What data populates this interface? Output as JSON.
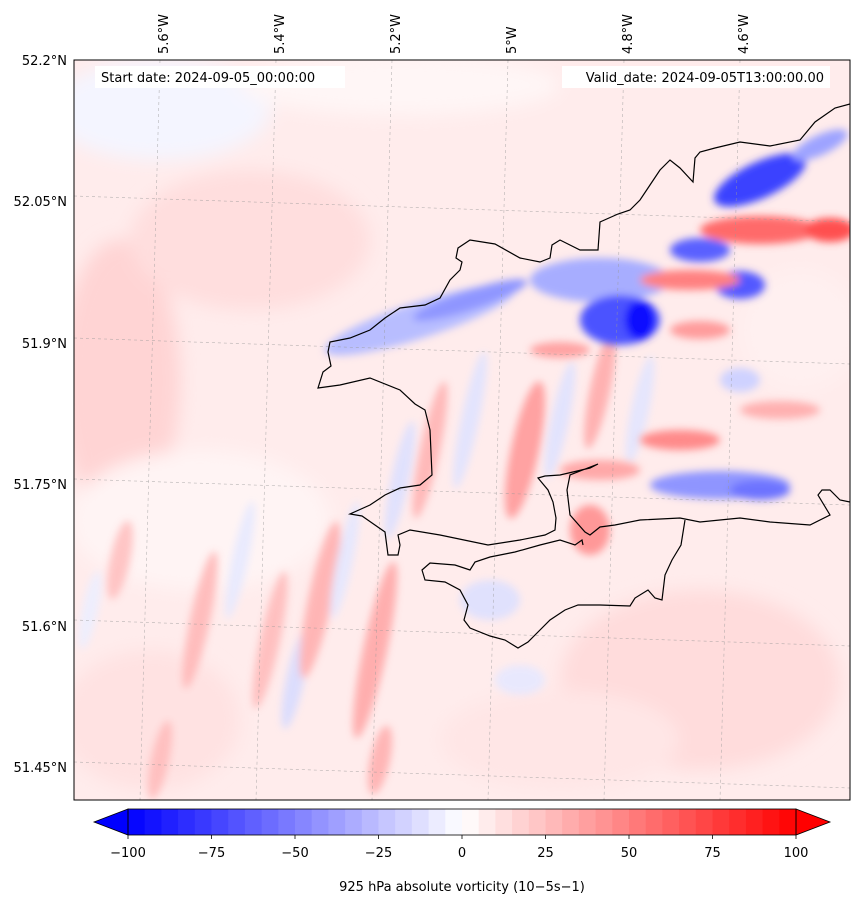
{
  "map": {
    "start_date_label": "Start date: 2024-09-05_00:00:00",
    "valid_date_label": "Valid_date: 2024-09-05T13:00:00.00",
    "lon_ticks": [
      "5.6°W",
      "5.4°W",
      "5.2°W",
      "5°W",
      "4.8°W",
      "4.6°W"
    ],
    "lat_ticks": [
      "52.2°N",
      "52.05°N",
      "51.9°N",
      "51.75°N",
      "51.6°N",
      "51.45°N"
    ],
    "colorbar": {
      "min": -100,
      "max": 100,
      "ticks": [
        "−100",
        "−75",
        "−50",
        "−25",
        "0",
        "25",
        "50",
        "75",
        "100"
      ],
      "colormap": "bwr",
      "extend": "both"
    },
    "colorbar_label": "925 hPa absolute vorticity (10−5s−1)"
  }
}
